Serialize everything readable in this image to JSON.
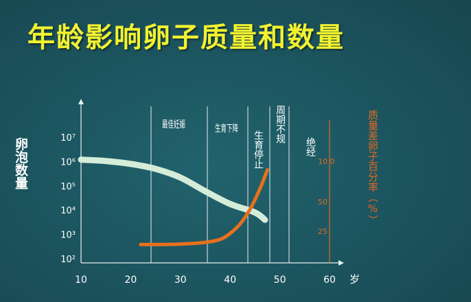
{
  "slide": {
    "title": "年龄影响卵子质量和数量"
  },
  "chart_data": {
    "type": "line",
    "title": "年龄影响卵子质量和数量",
    "x_axis": {
      "ticks": [
        "10",
        "20",
        "30",
        "40",
        "50",
        "60"
      ],
      "unit": "岁",
      "range": [
        10,
        60
      ]
    },
    "y_left": {
      "label": "卵泡数量",
      "ticks": [
        "10⁷",
        "10⁶",
        "10⁵",
        "10⁴",
        "10³",
        "10²"
      ],
      "scale": "log"
    },
    "y_right": {
      "label": "质量差卵子百分率（%）",
      "ticks": [
        "10 0",
        "50",
        "25"
      ],
      "color": "#e36a22"
    },
    "series": [
      {
        "name": "卵泡数量",
        "axis": "left",
        "color": "#d4ecd8",
        "points": [
          [
            10,
            1200000
          ],
          [
            15,
            1050000
          ],
          [
            20,
            800000
          ],
          [
            25,
            500000
          ],
          [
            30,
            220000
          ],
          [
            35,
            60000
          ],
          [
            40,
            18000
          ],
          [
            45,
            8000
          ],
          [
            47,
            4000
          ]
        ]
      },
      {
        "name": "质量差卵子百分率",
        "axis": "right",
        "color": "#e8701d",
        "points": [
          [
            22,
            3
          ],
          [
            26,
            3
          ],
          [
            30,
            3.5
          ],
          [
            35,
            5.5
          ],
          [
            38,
            9
          ],
          [
            40,
            16
          ],
          [
            42,
            27
          ],
          [
            44,
            44
          ],
          [
            46,
            68
          ],
          [
            47.5,
            90
          ]
        ]
      }
    ],
    "annotations": [
      {
        "text": "最佳妊娠"
      },
      {
        "text": "生育下降"
      },
      {
        "text": "生育停止"
      },
      {
        "text": "周期不规"
      },
      {
        "text": "绝经"
      }
    ],
    "grid": false
  }
}
